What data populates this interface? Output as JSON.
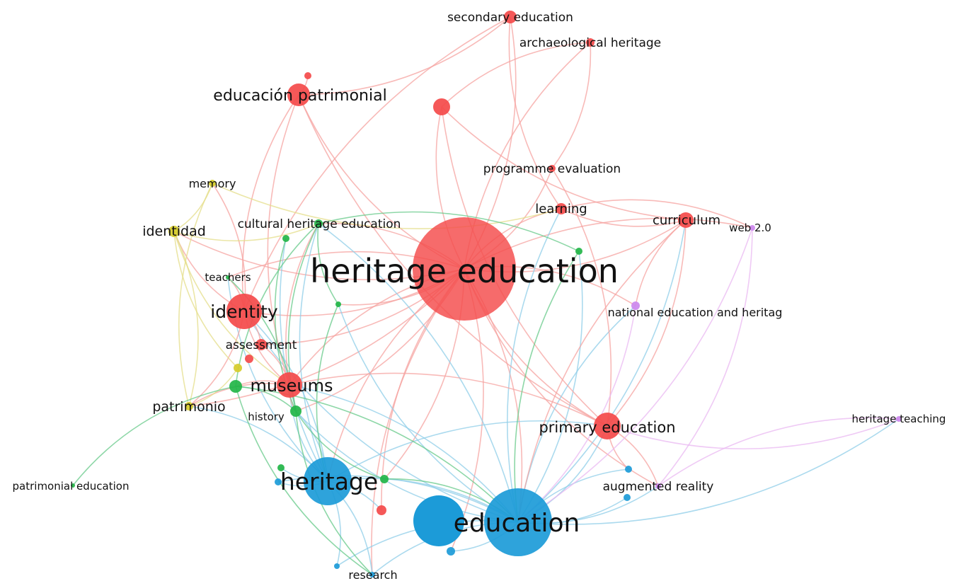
{
  "clusters": [
    {
      "id": "red",
      "color": "#f44a4a",
      "edge_color": "#f5a3a0"
    },
    {
      "id": "blue",
      "color": "#1c9bd8",
      "edge_color": "#8fcde8"
    },
    {
      "id": "green",
      "color": "#22b548",
      "edge_color": "#67c98a"
    },
    {
      "id": "yellow",
      "color": "#d6cc2a",
      "edge_color": "#e4dd8a"
    },
    {
      "id": "purple",
      "color": "#cc88ee",
      "edge_color": "#e9b8f2"
    }
  ],
  "nodes": [
    {
      "id": "heritage-education",
      "label": "heritage education",
      "cluster": "red"
    },
    {
      "id": "education",
      "label": "education",
      "cluster": "blue"
    },
    {
      "id": "heritage",
      "label": "heritage",
      "cluster": "blue"
    },
    {
      "id": "identity",
      "label": "identity",
      "cluster": "red"
    },
    {
      "id": "museums",
      "label": "museums",
      "cluster": "red"
    },
    {
      "id": "educacion-patrimonial",
      "label": "educación patrimonial",
      "cluster": "red"
    },
    {
      "id": "primary-education",
      "label": "primary education",
      "cluster": "red"
    },
    {
      "id": "curriculum",
      "label": "curriculum",
      "cluster": "red"
    },
    {
      "id": "learning",
      "label": "learning",
      "cluster": "red"
    },
    {
      "id": "programme-evaluation",
      "label": "programme evaluation",
      "cluster": "red"
    },
    {
      "id": "secondary-education",
      "label": "secondary education",
      "cluster": "red"
    },
    {
      "id": "archaeological-heritage",
      "label": "archaeological heritage",
      "cluster": "red"
    },
    {
      "id": "assessment",
      "label": "assessment",
      "cluster": "red"
    },
    {
      "id": "red-unlabeled-1",
      "label": "",
      "cluster": "red"
    },
    {
      "id": "red-unlabeled-2",
      "label": "",
      "cluster": "red"
    },
    {
      "id": "red-unlabeled-3",
      "label": "",
      "cluster": "red"
    },
    {
      "id": "red-unlabeled-4",
      "label": "",
      "cluster": "red"
    },
    {
      "id": "identidad",
      "label": "identidad",
      "cluster": "yellow"
    },
    {
      "id": "memory",
      "label": "memory",
      "cluster": "yellow"
    },
    {
      "id": "patrimonio",
      "label": "patrimonio",
      "cluster": "yellow"
    },
    {
      "id": "yellow-unlabeled-1",
      "label": "",
      "cluster": "yellow"
    },
    {
      "id": "cultural-heritage-education",
      "label": "cultural heritage education",
      "cluster": "green"
    },
    {
      "id": "teachers",
      "label": "teachers",
      "cluster": "green"
    },
    {
      "id": "history",
      "label": "history",
      "cluster": "green"
    },
    {
      "id": "patrimonial-education",
      "label": "patrimonial education",
      "cluster": "green"
    },
    {
      "id": "green-unlabeled-1",
      "label": "",
      "cluster": "green"
    },
    {
      "id": "green-unlabeled-2",
      "label": "",
      "cluster": "green"
    },
    {
      "id": "green-unlabeled-3",
      "label": "",
      "cluster": "green"
    },
    {
      "id": "green-unlabeled-4",
      "label": "",
      "cluster": "green"
    },
    {
      "id": "green-unlabeled-5",
      "label": "",
      "cluster": "green"
    },
    {
      "id": "green-unlabeled-6",
      "label": "",
      "cluster": "green"
    },
    {
      "id": "research",
      "label": "research",
      "cluster": "blue"
    },
    {
      "id": "blue-unlabeled-1",
      "label": "",
      "cluster": "blue"
    },
    {
      "id": "blue-unlabeled-2",
      "label": "",
      "cluster": "blue"
    },
    {
      "id": "blue-unlabeled-3",
      "label": "",
      "cluster": "blue"
    },
    {
      "id": "blue-unlabeled-4",
      "label": "",
      "cluster": "blue"
    },
    {
      "id": "blue-unlabeled-5",
      "label": "",
      "cluster": "blue"
    },
    {
      "id": "augmented-reality",
      "label": "augmented reality",
      "cluster": "purple"
    },
    {
      "id": "web-2-0",
      "label": "web 2.0",
      "cluster": "purple"
    },
    {
      "id": "national-education-and-heritag",
      "label": "national education and heritag",
      "cluster": "purple"
    },
    {
      "id": "heritage-teaching",
      "label": "heritage teaching",
      "cluster": "purple"
    }
  ],
  "links": [
    [
      "heritage-education",
      "education"
    ],
    [
      "heritage-education",
      "heritage"
    ],
    [
      "heritage-education",
      "identity"
    ],
    [
      "heritage-education",
      "museums"
    ],
    [
      "heritage-education",
      "educacion-patrimonial"
    ],
    [
      "heritage-education",
      "primary-education"
    ],
    [
      "heritage-education",
      "curriculum"
    ],
    [
      "heritage-education",
      "learning"
    ],
    [
      "heritage-education",
      "programme-evaluation"
    ],
    [
      "heritage-education",
      "secondary-education"
    ],
    [
      "heritage-education",
      "archaeological-heritage"
    ],
    [
      "heritage-education",
      "assessment"
    ],
    [
      "heritage-education",
      "red-unlabeled-1"
    ],
    [
      "heritage-education",
      "identidad"
    ],
    [
      "heritage-education",
      "cultural-heritage-education"
    ],
    [
      "heritage-education",
      "history"
    ],
    [
      "heritage-education",
      "research"
    ],
    [
      "heritage-education",
      "augmented-reality"
    ],
    [
      "heritage-education",
      "national-education-and-heritag"
    ],
    [
      "heritage-education",
      "teachers"
    ],
    [
      "heritage-education",
      "patrimonio"
    ],
    [
      "heritage-education",
      "green-unlabeled-3"
    ],
    [
      "heritage-education",
      "green-unlabeled-5"
    ],
    [
      "heritage-education",
      "red-unlabeled-4"
    ],
    [
      "heritage-education",
      "blue-unlabeled-4"
    ],
    [
      "heritage-education",
      "web-2-0"
    ],
    [
      "education",
      "heritage"
    ],
    [
      "education",
      "museums"
    ],
    [
      "education",
      "primary-education"
    ],
    [
      "education",
      "identity"
    ],
    [
      "education",
      "research"
    ],
    [
      "education",
      "augmented-reality"
    ],
    [
      "education",
      "curriculum"
    ],
    [
      "education",
      "history"
    ],
    [
      "education",
      "learning"
    ],
    [
      "education",
      "blue-unlabeled-1"
    ],
    [
      "education",
      "blue-unlabeled-2"
    ],
    [
      "education",
      "blue-unlabeled-3"
    ],
    [
      "education",
      "blue-unlabeled-4"
    ],
    [
      "education",
      "blue-unlabeled-5"
    ],
    [
      "education",
      "heritage-teaching"
    ],
    [
      "education",
      "cultural-heritage-education"
    ],
    [
      "education",
      "green-unlabeled-3"
    ],
    [
      "education",
      "green-unlabeled-4"
    ],
    [
      "education",
      "national-education-and-heritag"
    ],
    [
      "heritage",
      "museums"
    ],
    [
      "heritage",
      "identity"
    ],
    [
      "heritage",
      "history"
    ],
    [
      "heritage",
      "cultural-heritage-education"
    ],
    [
      "heritage",
      "primary-education"
    ],
    [
      "heritage",
      "research"
    ],
    [
      "heritage",
      "blue-unlabeled-1"
    ],
    [
      "heritage",
      "red-unlabeled-4"
    ],
    [
      "heritage",
      "green-unlabeled-2"
    ],
    [
      "heritage",
      "green-unlabeled-6"
    ],
    [
      "heritage",
      "patrimonio"
    ],
    [
      "heritage",
      "teachers"
    ],
    [
      "heritage",
      "blue-unlabeled-5"
    ],
    [
      "identity",
      "educacion-patrimonial"
    ],
    [
      "identity",
      "museums"
    ],
    [
      "identity",
      "identidad"
    ],
    [
      "identity",
      "patrimonio"
    ],
    [
      "identity",
      "assessment"
    ],
    [
      "identity",
      "memory"
    ],
    [
      "identity",
      "teachers"
    ],
    [
      "museums",
      "history"
    ],
    [
      "museums",
      "cultural-heritage-education"
    ],
    [
      "museums",
      "assessment"
    ],
    [
      "museums",
      "patrimonio"
    ],
    [
      "museums",
      "green-unlabeled-1"
    ],
    [
      "museums",
      "primary-education"
    ],
    [
      "educacion-patrimonial",
      "secondary-education"
    ],
    [
      "educacion-patrimonial",
      "red-unlabeled-2"
    ],
    [
      "educacion-patrimonial",
      "museums"
    ],
    [
      "educacion-patrimonial",
      "primary-education"
    ],
    [
      "red-unlabeled-1",
      "primary-education"
    ],
    [
      "red-unlabeled-1",
      "archaeological-heritage"
    ],
    [
      "red-unlabeled-1",
      "curriculum"
    ],
    [
      "programme-evaluation",
      "archaeological-heritage"
    ],
    [
      "programme-evaluation",
      "primary-education"
    ],
    [
      "secondary-education",
      "learning"
    ],
    [
      "secondary-education",
      "identity"
    ],
    [
      "learning",
      "curriculum"
    ],
    [
      "learning",
      "web-2-0"
    ],
    [
      "curriculum",
      "primary-education"
    ],
    [
      "curriculum",
      "education"
    ],
    [
      "curriculum",
      "national-education-and-heritag"
    ],
    [
      "primary-education",
      "augmented-reality"
    ],
    [
      "primary-education",
      "blue-unlabeled-2"
    ],
    [
      "identidad",
      "memory"
    ],
    [
      "identidad",
      "patrimonio"
    ],
    [
      "identidad",
      "yellow-unlabeled-1"
    ],
    [
      "identidad",
      "cultural-heritage-education"
    ],
    [
      "identidad",
      "museums"
    ],
    [
      "memory",
      "patrimonio"
    ],
    [
      "memory",
      "learning"
    ],
    [
      "patrimonio",
      "yellow-unlabeled-1"
    ],
    [
      "cultural-heritage-education",
      "green-unlabeled-1"
    ],
    [
      "cultural-heritage-education",
      "green-unlabeled-3"
    ],
    [
      "cultural-heritage-education",
      "history"
    ],
    [
      "cultural-heritage-education",
      "green-unlabeled-4"
    ],
    [
      "green-unlabeled-1",
      "patrimonial-education"
    ],
    [
      "green-unlabeled-1",
      "history"
    ],
    [
      "green-unlabeled-1",
      "research"
    ],
    [
      "green-unlabeled-1",
      "education"
    ],
    [
      "green-unlabeled-2",
      "history"
    ],
    [
      "green-unlabeled-5",
      "history"
    ],
    [
      "green-unlabeled-5",
      "education"
    ],
    [
      "green-unlabeled-3",
      "heritage"
    ],
    [
      "green-unlabeled-4",
      "education"
    ],
    [
      "history",
      "research"
    ],
    [
      "history",
      "teachers"
    ],
    [
      "augmented-reality",
      "heritage-teaching"
    ],
    [
      "augmented-reality",
      "web-2-0"
    ],
    [
      "national-education-and-heritag",
      "education"
    ],
    [
      "web-2-0",
      "education"
    ],
    [
      "heritage-teaching",
      "primary-education"
    ]
  ]
}
